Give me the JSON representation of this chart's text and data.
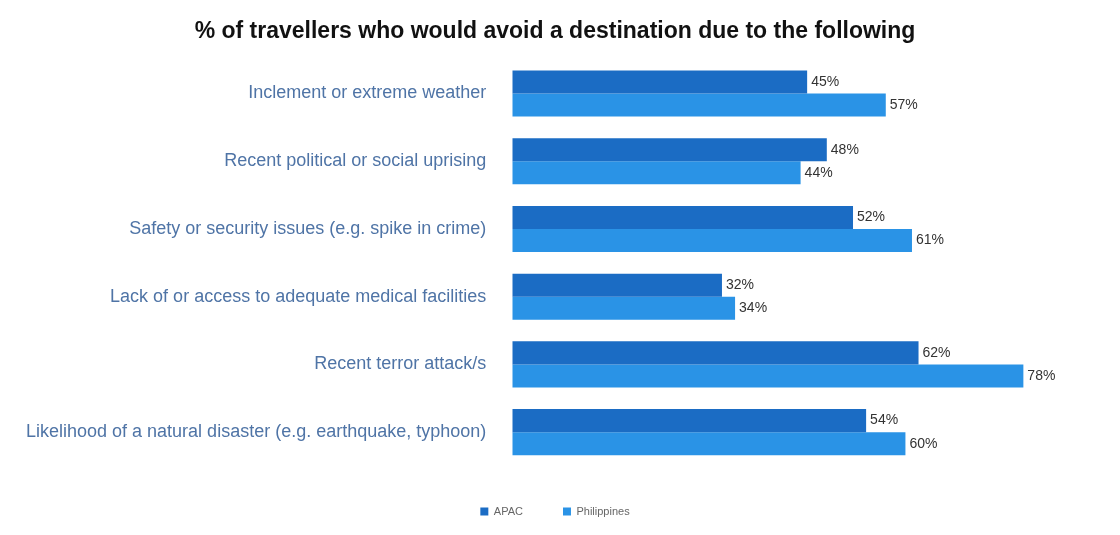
{
  "chart_data": {
    "type": "bar",
    "orientation": "horizontal",
    "title": "% of travellers who would avoid a destination due to the following",
    "categories": [
      "Inclement or extreme weather",
      "Recent political or social uprising",
      "Safety or security issues (e.g. spike in crime)",
      "Lack of or access to adequate medical facilities",
      "Recent terror attack/s",
      "Likelihood of a natural disaster (e.g. earthquake, typhoon)"
    ],
    "series": [
      {
        "name": "APAC",
        "color": "#1b6cc4",
        "values": [
          45,
          48,
          52,
          32,
          62,
          54
        ],
        "value_labels": [
          "45%",
          "48%",
          "52%",
          "32%",
          "62%",
          "54%"
        ]
      },
      {
        "name": "Philippines",
        "color": "#2a93e6",
        "values": [
          57,
          44,
          61,
          34,
          78,
          60
        ],
        "value_labels": [
          "57%",
          "44%",
          "61%",
          "34%",
          "78%",
          "60%"
        ]
      }
    ],
    "legend": "bottom"
  }
}
